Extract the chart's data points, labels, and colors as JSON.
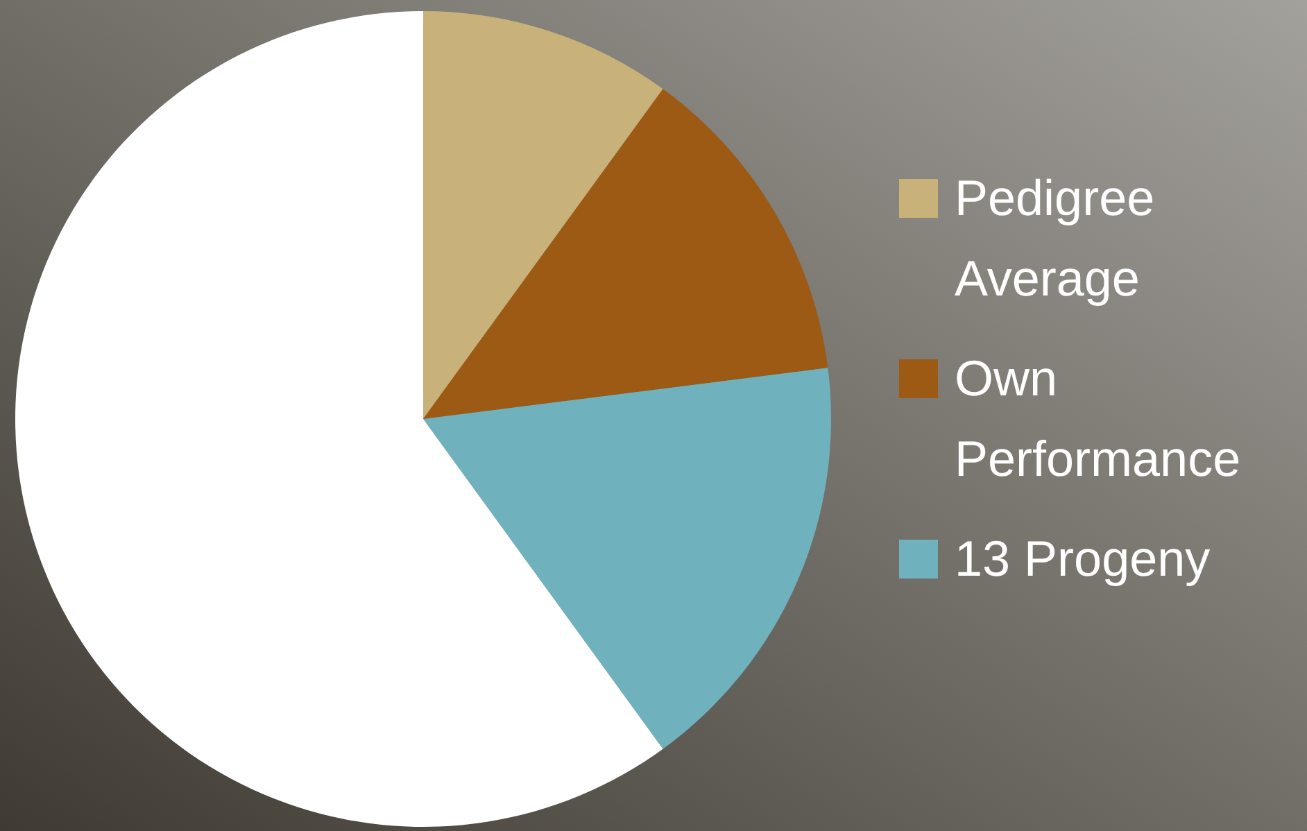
{
  "chart_data": {
    "type": "pie",
    "categories": [
      "Pedigree Average",
      "Own Performance",
      "13 Progeny",
      null
    ],
    "values": [
      10,
      13,
      17,
      60
    ],
    "colors": [
      "#c8b27a",
      "#9c5a14",
      "#6fb1bc",
      "#ffffff"
    ],
    "legend": "right"
  }
}
